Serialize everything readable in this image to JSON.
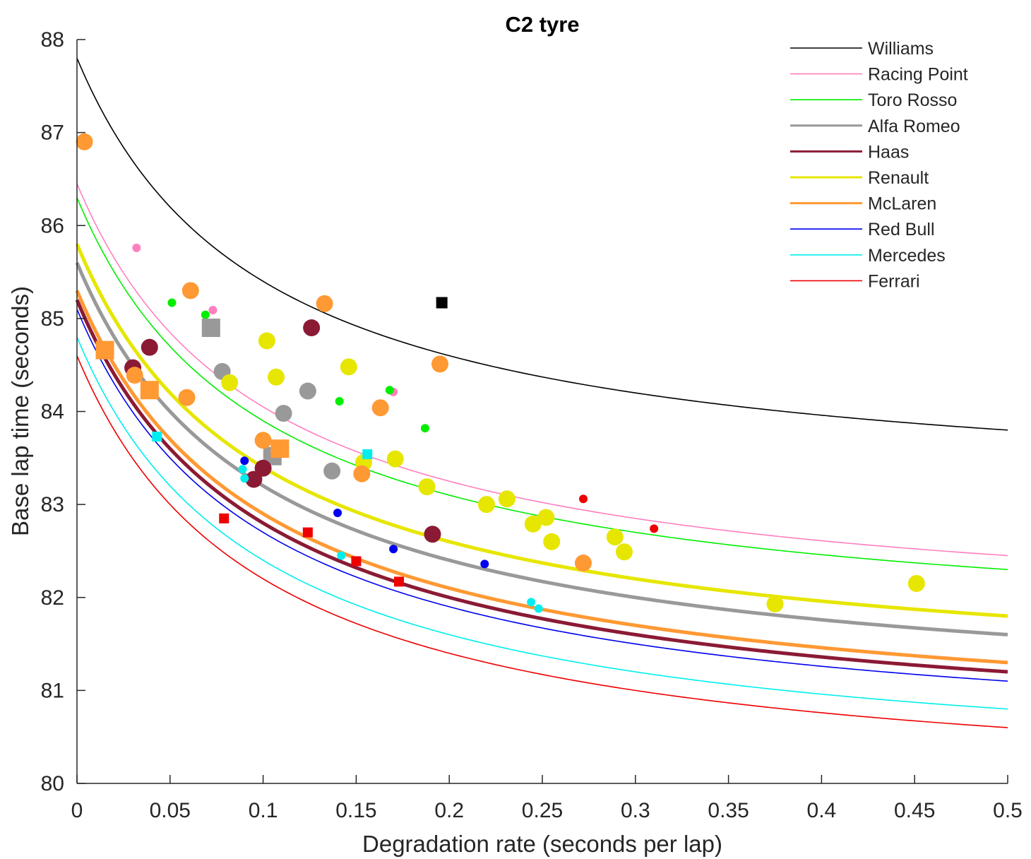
{
  "chart_data": {
    "type": "scatter",
    "title": "C2 tyre",
    "xlabel": "Degradation rate (seconds per lap)",
    "ylabel": "Base lap time (seconds)",
    "xlim": [
      0,
      0.5
    ],
    "ylim": [
      80,
      88
    ],
    "xticks": [
      0,
      0.05,
      0.1,
      0.15,
      0.2,
      0.25,
      0.3,
      0.35,
      0.4,
      0.45,
      0.5
    ],
    "xtick_labels": [
      "0",
      "0.05",
      "0.1",
      "0.15",
      "0.2",
      "0.25",
      "0.3",
      "0.35",
      "0.4",
      "0.45",
      "0.5"
    ],
    "yticks": [
      80,
      81,
      82,
      83,
      84,
      85,
      86,
      87,
      88
    ],
    "ytick_labels": [
      "80",
      "81",
      "82",
      "83",
      "84",
      "85",
      "86",
      "87",
      "88"
    ],
    "grid": false,
    "legend_position": "top-right",
    "series": [
      {
        "name": "Williams",
        "color": "#000000",
        "weight": "thin",
        "fit": {
          "y0": 87.8,
          "y1": 83.8
        },
        "points": [
          {
            "x": 0.196,
            "y": 85.17,
            "marker": "square",
            "size": "medium"
          }
        ]
      },
      {
        "name": "Racing Point",
        "color": "#ff7fbf",
        "weight": "thin",
        "fit": {
          "y0": 86.45,
          "y1": 82.45
        },
        "points": [
          {
            "x": 0.032,
            "y": 85.76,
            "marker": "circle",
            "size": "small"
          },
          {
            "x": 0.073,
            "y": 85.09,
            "marker": "circle",
            "size": "small"
          },
          {
            "x": 0.17,
            "y": 84.21,
            "marker": "circle",
            "size": "small"
          }
        ]
      },
      {
        "name": "Toro Rosso",
        "color": "#00ee00",
        "weight": "thin",
        "fit": {
          "y0": 86.3,
          "y1": 82.3
        },
        "points": [
          {
            "x": 0.051,
            "y": 85.17,
            "marker": "circle",
            "size": "small"
          },
          {
            "x": 0.069,
            "y": 85.04,
            "marker": "circle",
            "size": "small"
          },
          {
            "x": 0.07,
            "y": 84.88,
            "marker": "circle",
            "size": "small"
          },
          {
            "x": 0.141,
            "y": 84.11,
            "marker": "circle",
            "size": "small"
          },
          {
            "x": 0.168,
            "y": 84.23,
            "marker": "circle",
            "size": "small"
          },
          {
            "x": 0.187,
            "y": 83.82,
            "marker": "circle",
            "size": "small"
          }
        ]
      },
      {
        "name": "Alfa Romeo",
        "color": "#999999",
        "weight": "thick",
        "fit": {
          "y0": 85.6,
          "y1": 81.6
        },
        "points": [
          {
            "x": 0.072,
            "y": 84.9,
            "marker": "square",
            "size": "large"
          },
          {
            "x": 0.078,
            "y": 84.43,
            "marker": "circle",
            "size": "large"
          },
          {
            "x": 0.111,
            "y": 83.98,
            "marker": "circle",
            "size": "large"
          },
          {
            "x": 0.124,
            "y": 84.22,
            "marker": "circle",
            "size": "large"
          },
          {
            "x": 0.105,
            "y": 83.52,
            "marker": "square",
            "size": "large"
          },
          {
            "x": 0.137,
            "y": 83.36,
            "marker": "circle",
            "size": "large"
          }
        ]
      },
      {
        "name": "Haas",
        "color": "#8b1a34",
        "weight": "thick",
        "fit": {
          "y0": 85.2,
          "y1": 81.2
        },
        "points": [
          {
            "x": 0.039,
            "y": 84.69,
            "marker": "circle",
            "size": "large"
          },
          {
            "x": 0.03,
            "y": 84.47,
            "marker": "circle",
            "size": "large"
          },
          {
            "x": 0.126,
            "y": 84.9,
            "marker": "circle",
            "size": "large"
          },
          {
            "x": 0.1,
            "y": 83.39,
            "marker": "circle",
            "size": "large"
          },
          {
            "x": 0.095,
            "y": 83.27,
            "marker": "circle",
            "size": "large"
          },
          {
            "x": 0.191,
            "y": 82.68,
            "marker": "circle",
            "size": "large"
          }
        ]
      },
      {
        "name": "Renault",
        "color": "#e6e600",
        "weight": "thick",
        "fit": {
          "y0": 85.8,
          "y1": 81.8
        },
        "points": [
          {
            "x": 0.102,
            "y": 84.76,
            "marker": "circle",
            "size": "large"
          },
          {
            "x": 0.146,
            "y": 84.48,
            "marker": "circle",
            "size": "large"
          },
          {
            "x": 0.082,
            "y": 84.31,
            "marker": "circle",
            "size": "large"
          },
          {
            "x": 0.107,
            "y": 84.37,
            "marker": "circle",
            "size": "large"
          },
          {
            "x": 0.154,
            "y": 83.45,
            "marker": "circle",
            "size": "large"
          },
          {
            "x": 0.171,
            "y": 83.49,
            "marker": "circle",
            "size": "large"
          },
          {
            "x": 0.188,
            "y": 83.19,
            "marker": "circle",
            "size": "large"
          },
          {
            "x": 0.22,
            "y": 83.0,
            "marker": "circle",
            "size": "large"
          },
          {
            "x": 0.231,
            "y": 83.06,
            "marker": "circle",
            "size": "large"
          },
          {
            "x": 0.245,
            "y": 82.79,
            "marker": "circle",
            "size": "large"
          },
          {
            "x": 0.252,
            "y": 82.86,
            "marker": "circle",
            "size": "large"
          },
          {
            "x": 0.255,
            "y": 82.6,
            "marker": "circle",
            "size": "large"
          },
          {
            "x": 0.289,
            "y": 82.65,
            "marker": "circle",
            "size": "large"
          },
          {
            "x": 0.294,
            "y": 82.49,
            "marker": "circle",
            "size": "large"
          },
          {
            "x": 0.375,
            "y": 81.93,
            "marker": "circle",
            "size": "large"
          },
          {
            "x": 0.451,
            "y": 82.15,
            "marker": "circle",
            "size": "large"
          }
        ]
      },
      {
        "name": "McLaren",
        "color": "#ff9933",
        "weight": "thick",
        "fit": {
          "y0": 85.3,
          "y1": 81.3
        },
        "points": [
          {
            "x": 0.004,
            "y": 86.9,
            "marker": "circle",
            "size": "large"
          },
          {
            "x": 0.061,
            "y": 85.3,
            "marker": "circle",
            "size": "large"
          },
          {
            "x": 0.133,
            "y": 85.16,
            "marker": "circle",
            "size": "large"
          },
          {
            "x": 0.015,
            "y": 84.66,
            "marker": "square",
            "size": "large"
          },
          {
            "x": 0.031,
            "y": 84.39,
            "marker": "circle",
            "size": "large"
          },
          {
            "x": 0.039,
            "y": 84.23,
            "marker": "square",
            "size": "large"
          },
          {
            "x": 0.059,
            "y": 84.15,
            "marker": "circle",
            "size": "large"
          },
          {
            "x": 0.195,
            "y": 84.51,
            "marker": "circle",
            "size": "large"
          },
          {
            "x": 0.163,
            "y": 84.04,
            "marker": "circle",
            "size": "large"
          },
          {
            "x": 0.1,
            "y": 83.69,
            "marker": "circle",
            "size": "large"
          },
          {
            "x": 0.109,
            "y": 83.6,
            "marker": "square",
            "size": "large"
          },
          {
            "x": 0.153,
            "y": 83.33,
            "marker": "circle",
            "size": "large"
          },
          {
            "x": 0.272,
            "y": 82.37,
            "marker": "circle",
            "size": "large"
          }
        ]
      },
      {
        "name": "Red Bull",
        "color": "#0000ee",
        "weight": "thin",
        "fit": {
          "y0": 85.1,
          "y1": 81.1
        },
        "points": [
          {
            "x": 0.09,
            "y": 83.47,
            "marker": "circle",
            "size": "small"
          },
          {
            "x": 0.14,
            "y": 82.91,
            "marker": "circle",
            "size": "small"
          },
          {
            "x": 0.17,
            "y": 82.52,
            "marker": "circle",
            "size": "small"
          },
          {
            "x": 0.219,
            "y": 82.36,
            "marker": "circle",
            "size": "small"
          }
        ]
      },
      {
        "name": "Mercedes",
        "color": "#00eeee",
        "weight": "thin",
        "fit": {
          "y0": 84.8,
          "y1": 80.8
        },
        "points": [
          {
            "x": 0.043,
            "y": 83.73,
            "marker": "square",
            "size": "small"
          },
          {
            "x": 0.156,
            "y": 83.54,
            "marker": "square",
            "size": "small"
          },
          {
            "x": 0.089,
            "y": 83.38,
            "marker": "circle",
            "size": "small"
          },
          {
            "x": 0.09,
            "y": 83.28,
            "marker": "circle",
            "size": "small"
          },
          {
            "x": 0.142,
            "y": 82.45,
            "marker": "circle",
            "size": "small"
          },
          {
            "x": 0.244,
            "y": 81.95,
            "marker": "circle",
            "size": "small"
          },
          {
            "x": 0.248,
            "y": 81.88,
            "marker": "circle",
            "size": "small"
          }
        ]
      },
      {
        "name": "Ferrari",
        "color": "#ee0000",
        "weight": "thin",
        "fit": {
          "y0": 84.6,
          "y1": 80.6
        },
        "points": [
          {
            "x": 0.079,
            "y": 82.85,
            "marker": "square",
            "size": "small"
          },
          {
            "x": 0.124,
            "y": 82.7,
            "marker": "square",
            "size": "small"
          },
          {
            "x": 0.15,
            "y": 82.39,
            "marker": "square",
            "size": "small"
          },
          {
            "x": 0.173,
            "y": 82.17,
            "marker": "square",
            "size": "small"
          },
          {
            "x": 0.272,
            "y": 83.06,
            "marker": "circle",
            "size": "small"
          },
          {
            "x": 0.31,
            "y": 82.74,
            "marker": "circle",
            "size": "small"
          }
        ]
      }
    ]
  }
}
